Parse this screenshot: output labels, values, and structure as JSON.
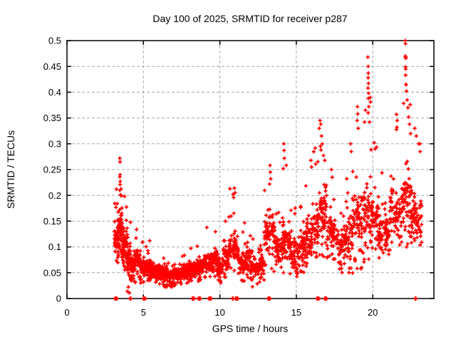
{
  "window": {
    "background": "#ffffff"
  },
  "chart_data": {
    "type": "scatter",
    "title": "Day 100 of 2025, SRMTID for receiver p287",
    "xlabel": "GPS time / hours",
    "ylabel": "SRMTID / TECUs",
    "xlim": [
      0,
      24
    ],
    "ylim": [
      0,
      0.5
    ],
    "xticks": [
      0,
      5,
      10,
      15,
      20
    ],
    "ytick_values": [
      0,
      0.05,
      0.1,
      0.15,
      0.2,
      0.25,
      0.3,
      0.35,
      0.4,
      0.45,
      0.5
    ],
    "ytick_labels": [
      "0",
      "0.05",
      "0.1",
      "0.15",
      "0.2",
      "0.25",
      "0.3",
      "0.35",
      "0.4",
      "0.45",
      "0.5"
    ],
    "grid": true,
    "grid_style": "dashed",
    "legend": "none",
    "marker": "plus",
    "series_color": "#ff0000",
    "grid_color": "#a8a8a8",
    "border_color": "#000000",
    "notable_points": [
      [
        3.46,
        0.272
      ],
      [
        3.47,
        0.265
      ],
      [
        3.47,
        0.24
      ],
      [
        3.46,
        0.236
      ],
      [
        3.48,
        0.227
      ],
      [
        3.47,
        0.221
      ],
      [
        3.46,
        0.21
      ],
      [
        3.5,
        0.201
      ],
      [
        3.56,
        0.199
      ],
      [
        3.76,
        0.198
      ],
      [
        4.08,
        0.011
      ],
      [
        10.95,
        0.214
      ],
      [
        11.0,
        0.205
      ],
      [
        10.9,
        0.196
      ],
      [
        13.28,
        0.258
      ],
      [
        13.3,
        0.245
      ],
      [
        13.33,
        0.232
      ],
      [
        13.25,
        0.222
      ],
      [
        14.18,
        0.3
      ],
      [
        14.2,
        0.287
      ],
      [
        14.22,
        0.272
      ],
      [
        14.15,
        0.252
      ],
      [
        15.95,
        0.268
      ],
      [
        16.0,
        0.255
      ],
      [
        16.55,
        0.345
      ],
      [
        16.6,
        0.338
      ],
      [
        16.5,
        0.33
      ],
      [
        16.65,
        0.315
      ],
      [
        16.7,
        0.3
      ],
      [
        16.58,
        0.295
      ],
      [
        16.62,
        0.288
      ],
      [
        17.3,
        0.25
      ],
      [
        17.35,
        0.235
      ],
      [
        18.55,
        0.3
      ],
      [
        18.6,
        0.285
      ],
      [
        19.0,
        0.372
      ],
      [
        19.02,
        0.358
      ],
      [
        18.98,
        0.345
      ],
      [
        19.05,
        0.33
      ],
      [
        19.68,
        0.468
      ],
      [
        19.7,
        0.45
      ],
      [
        19.71,
        0.437
      ],
      [
        19.7,
        0.428
      ],
      [
        19.72,
        0.417
      ],
      [
        19.69,
        0.408
      ],
      [
        19.73,
        0.398
      ],
      [
        19.71,
        0.388
      ],
      [
        19.74,
        0.372
      ],
      [
        19.7,
        0.36
      ],
      [
        20.1,
        0.302
      ],
      [
        20.15,
        0.29
      ],
      [
        21.55,
        0.357
      ],
      [
        21.6,
        0.345
      ],
      [
        21.58,
        0.332
      ],
      [
        22.12,
        0.5
      ],
      [
        22.14,
        0.494
      ],
      [
        22.13,
        0.47
      ],
      [
        22.15,
        0.468
      ],
      [
        22.16,
        0.466
      ],
      [
        22.14,
        0.449
      ],
      [
        22.16,
        0.445
      ],
      [
        22.15,
        0.433
      ],
      [
        22.18,
        0.415
      ],
      [
        22.2,
        0.402
      ],
      [
        22.25,
        0.385
      ],
      [
        22.3,
        0.37
      ],
      [
        22.35,
        0.352
      ],
      [
        22.4,
        0.338
      ],
      [
        22.75,
        0.33
      ],
      [
        22.85,
        0.315
      ],
      [
        23.0,
        0.3
      ],
      [
        23.1,
        0.285
      ]
    ],
    "zero_markers": [
      3.16,
      3.2,
      3.24,
      4.15,
      5.02,
      5.06,
      5.1,
      8.22,
      8.3,
      8.62,
      8.7,
      9.3,
      9.35,
      9.4,
      10.85,
      11.05,
      11.1,
      11.15,
      13.18,
      13.26,
      16.38,
      16.42,
      16.46,
      16.88,
      16.92,
      16.96,
      22.8
    ],
    "density_bins_format": "t_start,t_end,count,y_min,y_max,y_mode",
    "density_bins": [
      [
        3.1,
        3.35,
        40,
        0.06,
        0.22,
        0.12
      ],
      [
        3.35,
        3.6,
        60,
        0.07,
        0.26,
        0.14
      ],
      [
        3.6,
        3.9,
        70,
        0.05,
        0.2,
        0.11
      ],
      [
        3.9,
        4.2,
        60,
        0.01,
        0.16,
        0.08
      ],
      [
        4.2,
        4.5,
        55,
        0.03,
        0.13,
        0.07
      ],
      [
        4.5,
        4.8,
        50,
        0.04,
        0.15,
        0.08
      ],
      [
        4.8,
        5.1,
        45,
        0.03,
        0.12,
        0.06
      ],
      [
        5.1,
        5.5,
        55,
        0.03,
        0.12,
        0.06
      ],
      [
        5.5,
        6.0,
        75,
        0.025,
        0.095,
        0.055
      ],
      [
        6.0,
        6.5,
        85,
        0.02,
        0.08,
        0.05
      ],
      [
        6.5,
        7.0,
        90,
        0.02,
        0.07,
        0.045
      ],
      [
        7.0,
        7.5,
        90,
        0.025,
        0.075,
        0.05
      ],
      [
        7.5,
        8.0,
        80,
        0.03,
        0.09,
        0.055
      ],
      [
        8.0,
        8.5,
        70,
        0.03,
        0.11,
        0.06
      ],
      [
        8.5,
        9.0,
        65,
        0.03,
        0.12,
        0.065
      ],
      [
        9.0,
        9.4,
        50,
        0.04,
        0.14,
        0.07
      ],
      [
        9.4,
        9.8,
        45,
        0.04,
        0.15,
        0.08
      ],
      [
        9.8,
        10.2,
        50,
        0.03,
        0.13,
        0.06
      ],
      [
        10.2,
        10.6,
        45,
        0.04,
        0.17,
        0.08
      ],
      [
        10.6,
        11.2,
        60,
        0.05,
        0.215,
        0.1
      ],
      [
        11.2,
        11.7,
        55,
        0.03,
        0.15,
        0.07
      ],
      [
        11.7,
        12.0,
        35,
        0.04,
        0.19,
        0.08
      ],
      [
        12.0,
        12.5,
        55,
        0.02,
        0.12,
        0.06
      ],
      [
        12.5,
        12.9,
        45,
        0.03,
        0.13,
        0.065
      ],
      [
        12.9,
        13.6,
        65,
        0.05,
        0.25,
        0.13
      ],
      [
        13.6,
        14.1,
        50,
        0.06,
        0.19,
        0.1
      ],
      [
        14.1,
        14.6,
        55,
        0.05,
        0.27,
        0.11
      ],
      [
        14.6,
        15.1,
        55,
        0.04,
        0.22,
        0.09
      ],
      [
        15.1,
        15.6,
        55,
        0.05,
        0.2,
        0.1
      ],
      [
        15.6,
        16.1,
        55,
        0.06,
        0.26,
        0.12
      ],
      [
        16.1,
        16.45,
        45,
        0.07,
        0.3,
        0.14
      ],
      [
        16.45,
        17.0,
        60,
        0.08,
        0.33,
        0.17
      ],
      [
        17.0,
        17.6,
        60,
        0.07,
        0.24,
        0.13
      ],
      [
        17.6,
        18.2,
        60,
        0.05,
        0.2,
        0.11
      ],
      [
        18.2,
        18.7,
        55,
        0.04,
        0.27,
        0.13
      ],
      [
        18.7,
        19.3,
        60,
        0.05,
        0.36,
        0.16
      ],
      [
        19.3,
        19.9,
        60,
        0.06,
        0.4,
        0.17
      ],
      [
        19.9,
        20.4,
        55,
        0.08,
        0.3,
        0.16
      ],
      [
        20.4,
        21.1,
        65,
        0.07,
        0.26,
        0.13
      ],
      [
        21.1,
        21.9,
        70,
        0.09,
        0.33,
        0.17
      ],
      [
        21.9,
        22.5,
        70,
        0.1,
        0.42,
        0.2
      ],
      [
        22.5,
        23.2,
        70,
        0.1,
        0.32,
        0.16
      ]
    ]
  }
}
